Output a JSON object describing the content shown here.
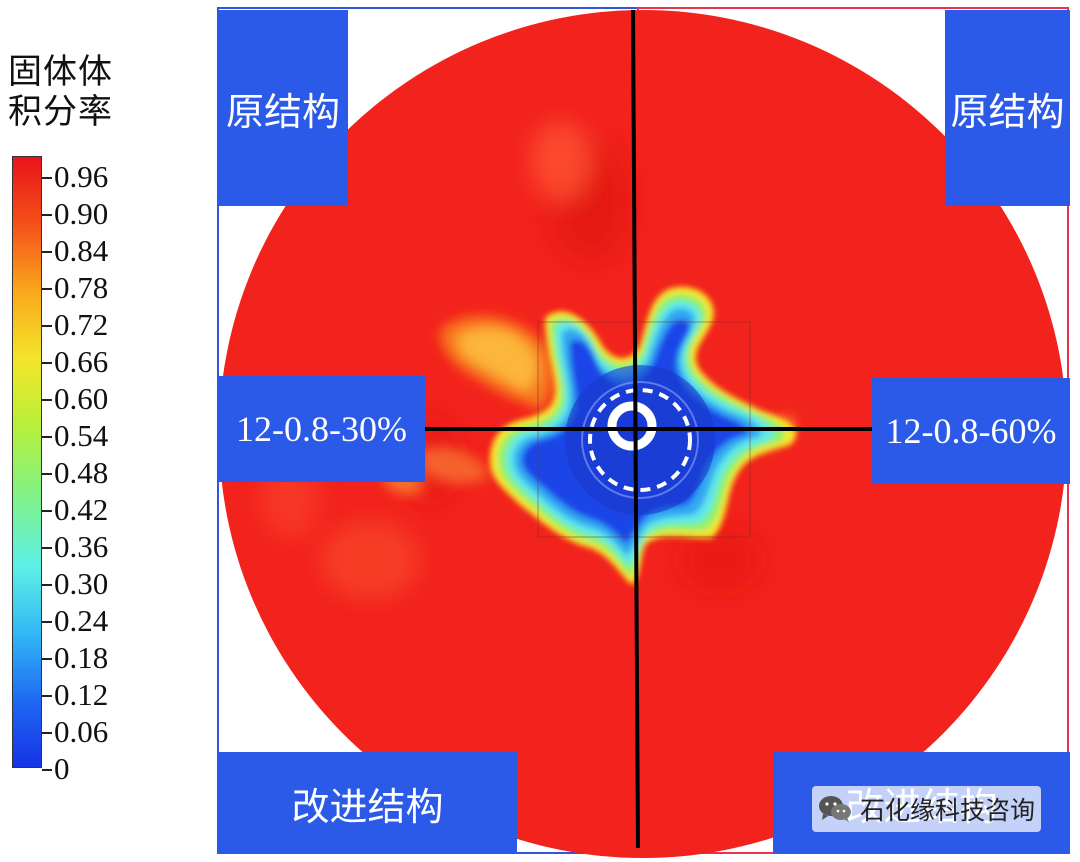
{
  "legend": {
    "title_line1": "固体体",
    "title_line2": "积分率",
    "ticks": [
      "0.96",
      "0.90",
      "0.84",
      "0.78",
      "0.72",
      "0.66",
      "0.60",
      "0.54",
      "0.48",
      "0.42",
      "0.36",
      "0.30",
      "0.24",
      "0.18",
      "0.12",
      "0.06",
      "0"
    ]
  },
  "labels": {
    "top_left": "原结构",
    "top_right": "原结构",
    "mid_left": "12-0.8-30%",
    "mid_right": "12-0.8-60%",
    "bottom_left": "改进结构",
    "bottom_right": "改进结构"
  },
  "watermark": {
    "text": "石化缘科技咨询",
    "icon": "wechat-icon"
  },
  "colors": {
    "label_box": "#2b59e8",
    "field_red": "#f2221c",
    "left_frame": "#3355dd",
    "right_frame": "#e8344d",
    "colormap": [
      "#1632e6",
      "#1f6af2",
      "#33b8f5",
      "#5ef0e6",
      "#7ef28a",
      "#b8f03a",
      "#f4e52a",
      "#f9a81c",
      "#f4501a",
      "#e8141a"
    ]
  }
}
